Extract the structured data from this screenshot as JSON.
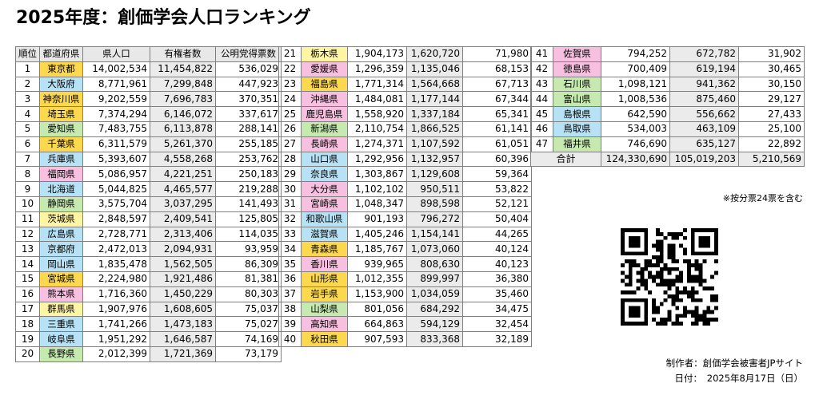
{
  "title": "2025年度：創価学会人口ランキング",
  "headers": {
    "rank": "順位",
    "prefecture": "都道府県",
    "population": "県人口",
    "voters": "有権者数",
    "komeito_votes": "公明党得票数"
  },
  "colors": {
    "pink": "#f8c0e0",
    "yellow": "#fef5a4",
    "orange": "#fcd84e",
    "blue": "#b7e2f5",
    "green": "#c5e9ae",
    "gray": "#ebebeb"
  },
  "rows": [
    {
      "rank": "1",
      "pref": "東京都",
      "color": "orange",
      "pop": "14,002,534",
      "voters": "11,454,822",
      "votes": "536,029"
    },
    {
      "rank": "2",
      "pref": "大阪府",
      "color": "blue",
      "pop": "8,771,961",
      "voters": "7,299,848",
      "votes": "447,923"
    },
    {
      "rank": "3",
      "pref": "神奈川県",
      "color": "orange",
      "pop": "9,202,559",
      "voters": "7,696,783",
      "votes": "370,351"
    },
    {
      "rank": "4",
      "pref": "埼玉県",
      "color": "orange",
      "pop": "7,374,294",
      "voters": "6,146,072",
      "votes": "337,617"
    },
    {
      "rank": "5",
      "pref": "愛知県",
      "color": "green",
      "pop": "7,483,755",
      "voters": "6,113,878",
      "votes": "288,141"
    },
    {
      "rank": "6",
      "pref": "千葉県",
      "color": "orange",
      "pop": "6,311,579",
      "voters": "5,261,370",
      "votes": "255,185"
    },
    {
      "rank": "7",
      "pref": "兵庫県",
      "color": "blue",
      "pop": "5,393,607",
      "voters": "4,558,268",
      "votes": "253,762"
    },
    {
      "rank": "8",
      "pref": "福岡県",
      "color": "pink",
      "pop": "5,086,957",
      "voters": "4,221,251",
      "votes": "250,183"
    },
    {
      "rank": "9",
      "pref": "北海道",
      "color": "blue",
      "pop": "5,044,825",
      "voters": "4,465,577",
      "votes": "219,288"
    },
    {
      "rank": "10",
      "pref": "静岡県",
      "color": "green",
      "pop": "3,575,704",
      "voters": "3,037,295",
      "votes": "141,493"
    },
    {
      "rank": "11",
      "pref": "茨城県",
      "color": "yellow",
      "pop": "2,848,597",
      "voters": "2,409,541",
      "votes": "125,805"
    },
    {
      "rank": "12",
      "pref": "広島県",
      "color": "blue",
      "pop": "2,728,771",
      "voters": "2,313,406",
      "votes": "114,035"
    },
    {
      "rank": "13",
      "pref": "京都府",
      "color": "blue",
      "pop": "2,472,013",
      "voters": "2,094,931",
      "votes": "93,959"
    },
    {
      "rank": "14",
      "pref": "岡山県",
      "color": "blue",
      "pop": "1,835,478",
      "voters": "1,562,505",
      "votes": "86,309"
    },
    {
      "rank": "15",
      "pref": "宮城県",
      "color": "orange",
      "pop": "2,224,980",
      "voters": "1,921,486",
      "votes": "81,381"
    },
    {
      "rank": "16",
      "pref": "熊本県",
      "color": "pink",
      "pop": "1,716,360",
      "voters": "1,450,229",
      "votes": "80,303"
    },
    {
      "rank": "17",
      "pref": "群馬県",
      "color": "yellow",
      "pop": "1,907,976",
      "voters": "1,608,605",
      "votes": "75,037"
    },
    {
      "rank": "18",
      "pref": "三重県",
      "color": "blue",
      "pop": "1,741,266",
      "voters": "1,473,183",
      "votes": "75,027"
    },
    {
      "rank": "19",
      "pref": "岐阜県",
      "color": "blue",
      "pop": "1,951,292",
      "voters": "1,646,587",
      "votes": "74,169"
    },
    {
      "rank": "20",
      "pref": "長野県",
      "color": "green",
      "pop": "2,012,399",
      "voters": "1,721,369",
      "votes": "73,179"
    },
    {
      "rank": "21",
      "pref": "栃木県",
      "color": "yellow",
      "pop": "1,904,173",
      "voters": "1,620,720",
      "votes": "71,980"
    },
    {
      "rank": "22",
      "pref": "愛媛県",
      "color": "pink",
      "pop": "1,296,359",
      "voters": "1,135,046",
      "votes": "68,153"
    },
    {
      "rank": "23",
      "pref": "福島県",
      "color": "orange",
      "pop": "1,771,314",
      "voters": "1,564,668",
      "votes": "67,713"
    },
    {
      "rank": "24",
      "pref": "沖縄県",
      "color": "pink",
      "pop": "1,484,081",
      "voters": "1,177,144",
      "votes": "67,344"
    },
    {
      "rank": "25",
      "pref": "鹿児島県",
      "color": "pink",
      "pop": "1,558,920",
      "voters": "1,337,184",
      "votes": "65,341"
    },
    {
      "rank": "26",
      "pref": "新潟県",
      "color": "green",
      "pop": "2,110,754",
      "voters": "1,866,525",
      "votes": "61,141"
    },
    {
      "rank": "27",
      "pref": "長崎県",
      "color": "pink",
      "pop": "1,274,371",
      "voters": "1,107,592",
      "votes": "61,051"
    },
    {
      "rank": "28",
      "pref": "山口県",
      "color": "blue",
      "pop": "1,292,956",
      "voters": "1,132,957",
      "votes": "60,396"
    },
    {
      "rank": "29",
      "pref": "奈良県",
      "color": "blue",
      "pop": "1,303,867",
      "voters": "1,129,608",
      "votes": "59,364"
    },
    {
      "rank": "30",
      "pref": "大分県",
      "color": "pink",
      "pop": "1,102,102",
      "voters": "950,511",
      "votes": "53,822"
    },
    {
      "rank": "31",
      "pref": "宮崎県",
      "color": "pink",
      "pop": "1,048,347",
      "voters": "898,598",
      "votes": "52,121"
    },
    {
      "rank": "32",
      "pref": "和歌山県",
      "color": "blue",
      "pop": "901,193",
      "voters": "796,272",
      "votes": "50,404"
    },
    {
      "rank": "33",
      "pref": "滋賀県",
      "color": "blue",
      "pop": "1,405,246",
      "voters": "1,154,141",
      "votes": "44,265"
    },
    {
      "rank": "34",
      "pref": "青森県",
      "color": "orange",
      "pop": "1,185,767",
      "voters": "1,073,060",
      "votes": "40,124"
    },
    {
      "rank": "35",
      "pref": "香川県",
      "color": "pink",
      "pop": "939,965",
      "voters": "808,630",
      "votes": "40,123"
    },
    {
      "rank": "36",
      "pref": "山形県",
      "color": "orange",
      "pop": "1,012,355",
      "voters": "899,997",
      "votes": "36,380"
    },
    {
      "rank": "37",
      "pref": "岩手県",
      "color": "orange",
      "pop": "1,153,900",
      "voters": "1,034,059",
      "votes": "35,460"
    },
    {
      "rank": "38",
      "pref": "山梨県",
      "color": "green",
      "pop": "801,056",
      "voters": "684,292",
      "votes": "34,475"
    },
    {
      "rank": "39",
      "pref": "高知県",
      "color": "pink",
      "pop": "664,863",
      "voters": "594,129",
      "votes": "32,454"
    },
    {
      "rank": "40",
      "pref": "秋田県",
      "color": "orange",
      "pop": "907,593",
      "voters": "833,368",
      "votes": "32,189"
    },
    {
      "rank": "41",
      "pref": "佐賀県",
      "color": "pink",
      "pop": "794,252",
      "voters": "672,782",
      "votes": "31,902"
    },
    {
      "rank": "42",
      "pref": "徳島県",
      "color": "pink",
      "pop": "700,409",
      "voters": "619,194",
      "votes": "30,465"
    },
    {
      "rank": "43",
      "pref": "石川県",
      "color": "green",
      "pop": "1,098,121",
      "voters": "941,362",
      "votes": "30,150"
    },
    {
      "rank": "44",
      "pref": "富山県",
      "color": "green",
      "pop": "1,008,536",
      "voters": "875,460",
      "votes": "29,127"
    },
    {
      "rank": "45",
      "pref": "島根県",
      "color": "blue",
      "pop": "642,590",
      "voters": "556,662",
      "votes": "27,433"
    },
    {
      "rank": "46",
      "pref": "鳥取県",
      "color": "blue",
      "pop": "534,003",
      "voters": "463,109",
      "votes": "25,100"
    },
    {
      "rank": "47",
      "pref": "福井県",
      "color": "green",
      "pop": "746,690",
      "voters": "635,127",
      "votes": "22,892"
    }
  ],
  "total": {
    "label": "合計",
    "pop": "124,330,690",
    "voters": "105,019,203",
    "votes": "5,210,569"
  },
  "note": "※按分票24票を含む",
  "credit": {
    "author": "制作者：創価学会被害者JPサイト",
    "date": "日付：　2025年8月17日（日）"
  }
}
